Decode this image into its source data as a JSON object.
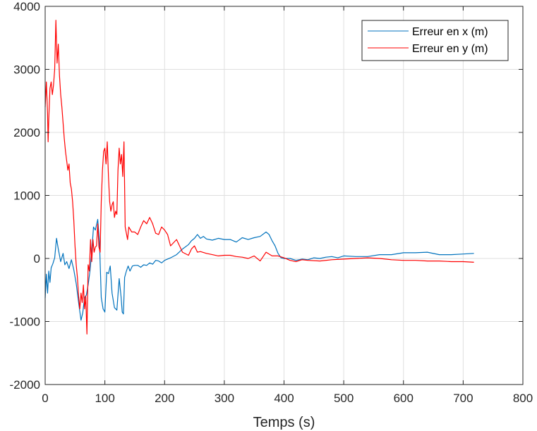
{
  "chart_data": {
    "type": "line",
    "title": "",
    "xlabel": "Temps (s)",
    "ylabel": "",
    "xlim": [
      0,
      800
    ],
    "ylim": [
      -2000,
      4000
    ],
    "xticks": [
      0,
      100,
      200,
      300,
      400,
      500,
      600,
      700,
      800
    ],
    "yticks": [
      -2000,
      -1000,
      0,
      1000,
      2000,
      3000,
      4000
    ],
    "grid": true,
    "legend_position": "top-right",
    "series": [
      {
        "name": "Erreur en x (m)",
        "color": "#0072BD",
        "x": [
          0,
          2,
          4,
          6,
          8,
          10,
          13,
          16,
          19,
          22,
          26,
          30,
          33,
          36,
          40,
          44,
          48,
          52,
          56,
          60,
          63,
          66,
          69,
          72,
          75,
          78,
          81,
          84,
          88,
          91,
          94,
          97,
          100,
          103,
          106,
          109,
          112,
          116,
          120,
          124,
          127,
          129,
          131,
          133,
          136,
          139,
          142,
          146,
          150,
          155,
          160,
          165,
          170,
          175,
          180,
          185,
          190,
          195,
          200,
          210,
          220,
          230,
          240,
          245,
          250,
          255,
          260,
          265,
          270,
          280,
          290,
          300,
          310,
          320,
          330,
          340,
          350,
          360,
          370,
          375,
          380,
          385,
          390,
          395,
          400,
          410,
          420,
          430,
          440,
          450,
          460,
          470,
          480,
          490,
          500,
          520,
          540,
          560,
          580,
          600,
          620,
          640,
          660,
          680,
          700,
          718
        ],
        "y": [
          -630,
          -250,
          -550,
          -200,
          -380,
          -150,
          -80,
          10,
          320,
          150,
          -50,
          80,
          -100,
          -50,
          -160,
          -20,
          -180,
          -400,
          -700,
          -980,
          -860,
          -620,
          -580,
          -420,
          -200,
          100,
          500,
          450,
          620,
          260,
          -620,
          -800,
          -850,
          -220,
          -240,
          -120,
          -550,
          -780,
          -820,
          -320,
          -600,
          -850,
          -880,
          -300,
          -200,
          -120,
          -200,
          -120,
          -110,
          -110,
          -140,
          -100,
          -110,
          -70,
          -90,
          -30,
          -40,
          -70,
          -30,
          10,
          60,
          150,
          220,
          280,
          320,
          380,
          320,
          350,
          310,
          290,
          320,
          300,
          300,
          260,
          330,
          300,
          330,
          350,
          420,
          380,
          280,
          200,
          80,
          10,
          0,
          0,
          -30,
          -10,
          -20,
          10,
          0,
          20,
          30,
          10,
          40,
          30,
          30,
          60,
          60,
          90,
          90,
          100,
          60,
          60,
          70,
          80
        ]
      },
      {
        "name": "Erreur en y (m)",
        "color": "#FF0000",
        "x": [
          0,
          2,
          4,
          5,
          6,
          8,
          10,
          12,
          14,
          16,
          18,
          20,
          22,
          24,
          26,
          28,
          30,
          32,
          34,
          36,
          38,
          40,
          42,
          44,
          46,
          48,
          50,
          52,
          54,
          56,
          58,
          60,
          62,
          64,
          66,
          68,
          70,
          72,
          74,
          76,
          78,
          80,
          82,
          84,
          86,
          88,
          90,
          92,
          94,
          96,
          98,
          100,
          102,
          104,
          106,
          108,
          110,
          112,
          114,
          116,
          118,
          120,
          122,
          124,
          126,
          128,
          130,
          132,
          134,
          136,
          138,
          140,
          145,
          150,
          155,
          160,
          165,
          170,
          175,
          180,
          185,
          190,
          195,
          200,
          205,
          210,
          220,
          230,
          240,
          245,
          250,
          255,
          260,
          270,
          280,
          290,
          300,
          310,
          320,
          330,
          340,
          350,
          360,
          370,
          380,
          390,
          400,
          410,
          420,
          430,
          440,
          460,
          480,
          500,
          520,
          540,
          560,
          580,
          600,
          620,
          640,
          660,
          680,
          700,
          718
        ],
        "y": [
          2400,
          2800,
          2300,
          1850,
          2200,
          2700,
          2800,
          2600,
          2750,
          3000,
          3780,
          3100,
          3400,
          2900,
          2600,
          2400,
          2150,
          1900,
          1700,
          1550,
          1400,
          1500,
          1200,
          1100,
          900,
          600,
          200,
          -100,
          -300,
          -600,
          -800,
          -550,
          -700,
          -420,
          -800,
          -600,
          -1200,
          -100,
          -200,
          300,
          -50,
          300,
          100,
          180,
          200,
          550,
          180,
          100,
          900,
          1400,
          1700,
          1750,
          1500,
          1850,
          1300,
          900,
          750,
          850,
          900,
          650,
          750,
          700,
          1400,
          1750,
          1500,
          1650,
          1300,
          1850,
          500,
          400,
          300,
          500,
          420,
          420,
          380,
          500,
          600,
          550,
          650,
          550,
          400,
          380,
          500,
          450,
          380,
          200,
          300,
          100,
          50,
          150,
          200,
          100,
          110,
          80,
          60,
          40,
          50,
          50,
          30,
          20,
          0,
          40,
          -40,
          100,
          40,
          40,
          10,
          -30,
          -50,
          -20,
          -30,
          -40,
          -20,
          -10,
          0,
          10,
          0,
          -20,
          -30,
          -30,
          -40,
          -40,
          -50,
          -50,
          -60
        ]
      }
    ]
  }
}
